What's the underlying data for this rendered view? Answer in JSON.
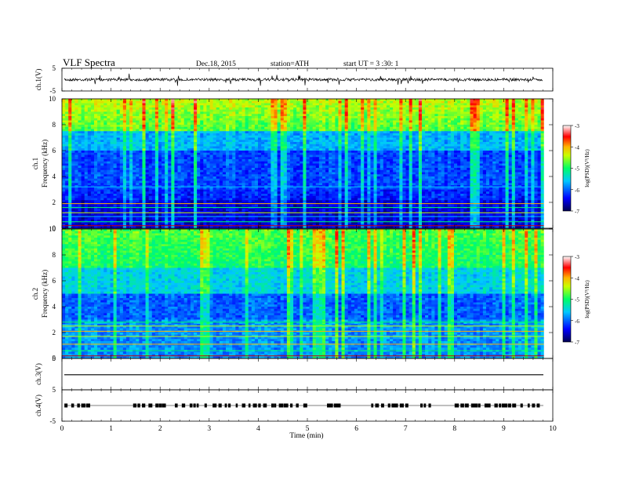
{
  "header": {
    "title": "VLF  Spectra",
    "date": "Dec.18, 2015",
    "station": "station=ATH",
    "start": "start  UT  =   3  :30: 1"
  },
  "chart_data": [
    {
      "type": "line",
      "panel": "ch1-waveform",
      "ylabel": "ch.1(V)",
      "ylim": [
        -5,
        5
      ],
      "yticks": [
        "5",
        "-5"
      ],
      "xlim": [
        0,
        10
      ],
      "baseline": 0,
      "series": [
        {
          "values": [
            0.2,
            -0.3,
            0.1,
            -0.2,
            0.3,
            -0.1,
            0.2,
            -0.2
          ]
        }
      ]
    },
    {
      "type": "heatmap",
      "panel": "ch1-spectrogram",
      "ylabel": "Frequency (kHz)",
      "panel_label": "ch.1",
      "ylim": [
        0,
        10
      ],
      "yticks": [
        "0",
        "2",
        "4",
        "6",
        "8",
        "10"
      ],
      "xlim": [
        0,
        10
      ],
      "colorbar": {
        "label": "log(PSD)(V²/Hz)",
        "ticks": [
          "-3",
          "-4",
          "-5",
          "-6",
          "-7"
        ],
        "range": [
          -7,
          -3
        ]
      }
    },
    {
      "type": "heatmap",
      "panel": "ch2-spectrogram",
      "ylabel": "Frequency (kHz)",
      "panel_label": "ch.2",
      "ylim": [
        0,
        10
      ],
      "yticks": [
        "0",
        "2",
        "4",
        "6",
        "8",
        "10"
      ],
      "xlim": [
        0,
        10
      ],
      "colorbar": {
        "label": "log(PSD)(V²/Hz)",
        "ticks": [
          "-3",
          "-4",
          "-5",
          "-6",
          "-7"
        ],
        "range": [
          -7,
          -3
        ]
      }
    },
    {
      "type": "line",
      "panel": "ch3-waveform",
      "ylabel": "ch.3(V)",
      "ylim": [
        -5,
        5
      ],
      "yticks": [
        "5"
      ],
      "xlim": [
        0,
        10
      ],
      "series": [
        {
          "values": [
            0,
            0,
            0,
            0
          ]
        }
      ]
    },
    {
      "type": "line",
      "panel": "ch4-waveform",
      "ylabel": "ch.4(V)",
      "ylim": [
        -5,
        5
      ],
      "yticks": [
        "5",
        "-5"
      ],
      "xlim": [
        0,
        10
      ],
      "series": [
        {
          "values": [
            0,
            0,
            0,
            0
          ]
        }
      ]
    }
  ],
  "xaxis": {
    "label": "Time  (min)",
    "ticks": [
      "0",
      "1",
      "2",
      "3",
      "4",
      "5",
      "6",
      "7",
      "8",
      "9",
      "10"
    ]
  }
}
